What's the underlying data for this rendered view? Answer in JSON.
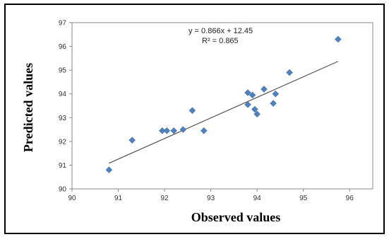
{
  "chart_data": {
    "type": "scatter",
    "xlabel": "Observed values",
    "ylabel": "Predicted values",
    "xlim": [
      90,
      96.5
    ],
    "ylim": [
      90,
      97
    ],
    "x_ticks": [
      "90",
      "91",
      "92",
      "93",
      "94",
      "95",
      "96"
    ],
    "y_ticks": [
      "90",
      "91",
      "92",
      "93",
      "94",
      "95",
      "96",
      "97"
    ],
    "grid": false,
    "legend": "none",
    "points": [
      {
        "x": 90.8,
        "y": 90.8
      },
      {
        "x": 91.3,
        "y": 92.05
      },
      {
        "x": 91.95,
        "y": 92.45
      },
      {
        "x": 92.05,
        "y": 92.45
      },
      {
        "x": 92.2,
        "y": 92.45
      },
      {
        "x": 92.4,
        "y": 92.5
      },
      {
        "x": 92.6,
        "y": 93.3
      },
      {
        "x": 92.85,
        "y": 92.45
      },
      {
        "x": 93.8,
        "y": 93.55
      },
      {
        "x": 93.8,
        "y": 94.05
      },
      {
        "x": 93.9,
        "y": 93.95
      },
      {
        "x": 93.95,
        "y": 93.35
      },
      {
        "x": 94.0,
        "y": 93.15
      },
      {
        "x": 94.15,
        "y": 94.2
      },
      {
        "x": 94.35,
        "y": 93.6
      },
      {
        "x": 94.4,
        "y": 94.0
      },
      {
        "x": 94.7,
        "y": 94.9
      },
      {
        "x": 95.75,
        "y": 96.3
      }
    ],
    "trendline": {
      "slope": 0.866,
      "intercept": 12.45,
      "x_range": [
        90.8,
        95.75
      ],
      "equation": "y = 0.866x + 12.45",
      "r_squared": "R² = 0.865"
    },
    "marker_color": "#4f81bd",
    "line_color": "#555555"
  }
}
